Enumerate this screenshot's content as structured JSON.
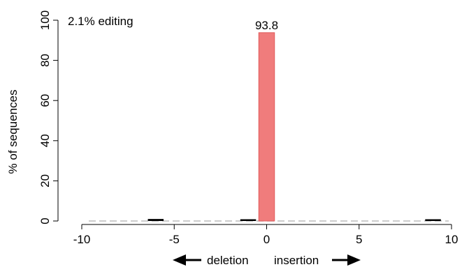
{
  "chart_data": {
    "type": "bar",
    "annotation": "2.1% editing",
    "ylabel": "% of sequences",
    "xlabel_left": "deletion",
    "xlabel_right": "insertion",
    "xlim": [
      -10,
      10
    ],
    "ylim": [
      0,
      100
    ],
    "xticks": [
      -10,
      -5,
      0,
      5,
      10
    ],
    "yticks": [
      0,
      20,
      40,
      60,
      80,
      100
    ],
    "xtick_labels": [
      "-10",
      "-5",
      "0",
      "5",
      "10"
    ],
    "ytick_labels": [
      "0",
      "20",
      "40",
      "60",
      "80",
      "100"
    ],
    "bars": [
      {
        "x": -6,
        "value": 1.0,
        "label": ""
      },
      {
        "x": -1,
        "value": 0.4,
        "label": ""
      },
      {
        "x": 0,
        "value": 93.8,
        "label": "93.8",
        "highlight": true
      },
      {
        "x": 9,
        "value": 0.3,
        "label": ""
      }
    ],
    "colors": {
      "highlight": "#f07c7c",
      "highlight_edge": "#e05a5a",
      "bar": "#000000",
      "baseline": "#bbbbbb"
    }
  }
}
